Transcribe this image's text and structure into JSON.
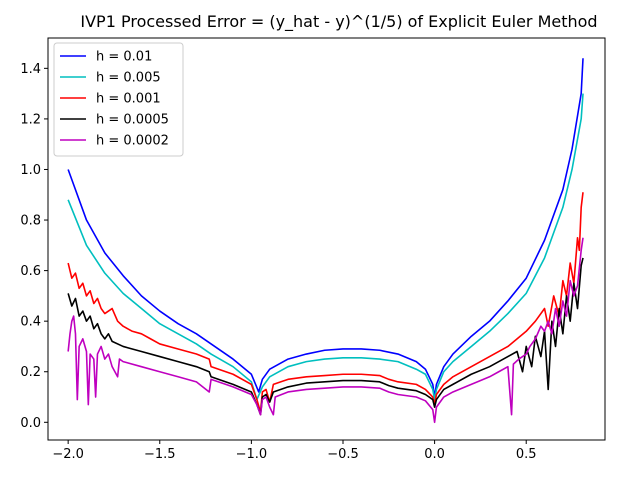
{
  "chart_data": {
    "type": "line",
    "title": "IVP1 Processed Error = (y_hat - y)^(1/5) of Explicit Euler Method",
    "xlabel": "",
    "ylabel": "",
    "xlim": [
      -2.11,
      0.93
    ],
    "ylim": [
      -0.07,
      1.52
    ],
    "xticks": [
      -2.0,
      -1.5,
      -1.0,
      -0.5,
      0.0,
      0.5
    ],
    "xtick_labels": [
      "−2.0",
      "−1.5",
      "−1.0",
      "−0.5",
      "0.0",
      "0.5"
    ],
    "yticks": [
      0.0,
      0.2,
      0.4,
      0.6,
      0.8,
      1.0,
      1.2,
      1.4
    ],
    "ytick_labels": [
      "0.0",
      "0.2",
      "0.4",
      "0.6",
      "0.8",
      "1.0",
      "1.2",
      "1.4"
    ],
    "grid": false,
    "legend_position": "top-left",
    "series": [
      {
        "name": "h = 0.01",
        "color": "#0000ff",
        "points": [
          [
            -2.0,
            1.0
          ],
          [
            -1.9,
            0.8
          ],
          [
            -1.8,
            0.67
          ],
          [
            -1.7,
            0.58
          ],
          [
            -1.6,
            0.5
          ],
          [
            -1.5,
            0.44
          ],
          [
            -1.4,
            0.39
          ],
          [
            -1.3,
            0.35
          ],
          [
            -1.2,
            0.3
          ],
          [
            -1.1,
            0.25
          ],
          [
            -1.0,
            0.19
          ],
          [
            -0.96,
            0.12
          ],
          [
            -0.94,
            0.17
          ],
          [
            -0.9,
            0.21
          ],
          [
            -0.8,
            0.25
          ],
          [
            -0.7,
            0.27
          ],
          [
            -0.6,
            0.285
          ],
          [
            -0.5,
            0.29
          ],
          [
            -0.4,
            0.29
          ],
          [
            -0.3,
            0.285
          ],
          [
            -0.2,
            0.27
          ],
          [
            -0.1,
            0.24
          ],
          [
            -0.05,
            0.21
          ],
          [
            -0.01,
            0.15
          ],
          [
            0.0,
            0.1
          ],
          [
            0.01,
            0.15
          ],
          [
            0.05,
            0.22
          ],
          [
            0.1,
            0.27
          ],
          [
            0.2,
            0.34
          ],
          [
            0.3,
            0.4
          ],
          [
            0.4,
            0.48
          ],
          [
            0.5,
            0.57
          ],
          [
            0.6,
            0.72
          ],
          [
            0.7,
            0.92
          ],
          [
            0.75,
            1.08
          ],
          [
            0.8,
            1.3
          ],
          [
            0.81,
            1.44
          ]
        ]
      },
      {
        "name": "h = 0.005",
        "color": "#00bfbf",
        "points": [
          [
            -2.0,
            0.88
          ],
          [
            -1.9,
            0.7
          ],
          [
            -1.8,
            0.59
          ],
          [
            -1.7,
            0.51
          ],
          [
            -1.6,
            0.45
          ],
          [
            -1.5,
            0.39
          ],
          [
            -1.4,
            0.35
          ],
          [
            -1.3,
            0.31
          ],
          [
            -1.22,
            0.27
          ],
          [
            -1.1,
            0.22
          ],
          [
            -1.0,
            0.16
          ],
          [
            -0.97,
            0.09
          ],
          [
            -0.94,
            0.14
          ],
          [
            -0.9,
            0.18
          ],
          [
            -0.8,
            0.22
          ],
          [
            -0.7,
            0.24
          ],
          [
            -0.6,
            0.25
          ],
          [
            -0.5,
            0.255
          ],
          [
            -0.4,
            0.255
          ],
          [
            -0.3,
            0.25
          ],
          [
            -0.2,
            0.24
          ],
          [
            -0.1,
            0.21
          ],
          [
            -0.05,
            0.19
          ],
          [
            -0.01,
            0.13
          ],
          [
            0.0,
            0.09
          ],
          [
            0.01,
            0.13
          ],
          [
            0.05,
            0.2
          ],
          [
            0.1,
            0.24
          ],
          [
            0.2,
            0.3
          ],
          [
            0.3,
            0.36
          ],
          [
            0.4,
            0.43
          ],
          [
            0.5,
            0.51
          ],
          [
            0.6,
            0.65
          ],
          [
            0.7,
            0.85
          ],
          [
            0.75,
            1.0
          ],
          [
            0.8,
            1.2
          ],
          [
            0.81,
            1.3
          ]
        ]
      },
      {
        "name": "h = 0.001",
        "color": "#ff0000",
        "points": [
          [
            -2.0,
            0.63
          ],
          [
            -1.98,
            0.57
          ],
          [
            -1.96,
            0.59
          ],
          [
            -1.94,
            0.53
          ],
          [
            -1.92,
            0.55
          ],
          [
            -1.9,
            0.5
          ],
          [
            -1.88,
            0.52
          ],
          [
            -1.86,
            0.47
          ],
          [
            -1.84,
            0.49
          ],
          [
            -1.82,
            0.45
          ],
          [
            -1.8,
            0.43
          ],
          [
            -1.76,
            0.45
          ],
          [
            -1.73,
            0.4
          ],
          [
            -1.7,
            0.38
          ],
          [
            -1.65,
            0.36
          ],
          [
            -1.6,
            0.35
          ],
          [
            -1.55,
            0.33
          ],
          [
            -1.5,
            0.31
          ],
          [
            -1.4,
            0.29
          ],
          [
            -1.3,
            0.27
          ],
          [
            -1.23,
            0.25
          ],
          [
            -1.22,
            0.22
          ],
          [
            -1.1,
            0.19
          ],
          [
            -1.0,
            0.15
          ],
          [
            -0.97,
            0.09
          ],
          [
            -0.95,
            0.04
          ],
          [
            -0.94,
            0.12
          ],
          [
            -0.92,
            0.13
          ],
          [
            -0.9,
            0.08
          ],
          [
            -0.88,
            0.15
          ],
          [
            -0.8,
            0.17
          ],
          [
            -0.7,
            0.18
          ],
          [
            -0.6,
            0.185
          ],
          [
            -0.5,
            0.19
          ],
          [
            -0.4,
            0.19
          ],
          [
            -0.3,
            0.185
          ],
          [
            -0.25,
            0.17
          ],
          [
            -0.2,
            0.16
          ],
          [
            -0.1,
            0.15
          ],
          [
            -0.05,
            0.13
          ],
          [
            -0.01,
            0.1
          ],
          [
            0.0,
            0.07
          ],
          [
            0.01,
            0.11
          ],
          [
            0.05,
            0.15
          ],
          [
            0.1,
            0.18
          ],
          [
            0.2,
            0.22
          ],
          [
            0.3,
            0.26
          ],
          [
            0.4,
            0.3
          ],
          [
            0.45,
            0.33
          ],
          [
            0.5,
            0.36
          ],
          [
            0.55,
            0.4
          ],
          [
            0.6,
            0.45
          ],
          [
            0.62,
            0.38
          ],
          [
            0.65,
            0.5
          ],
          [
            0.68,
            0.42
          ],
          [
            0.7,
            0.56
          ],
          [
            0.72,
            0.5
          ],
          [
            0.74,
            0.63
          ],
          [
            0.76,
            0.55
          ],
          [
            0.78,
            0.73
          ],
          [
            0.79,
            0.68
          ],
          [
            0.8,
            0.85
          ],
          [
            0.81,
            0.91
          ]
        ]
      },
      {
        "name": "h = 0.0005",
        "color": "#000000",
        "points": [
          [
            -2.0,
            0.51
          ],
          [
            -1.98,
            0.46
          ],
          [
            -1.96,
            0.49
          ],
          [
            -1.94,
            0.42
          ],
          [
            -1.92,
            0.44
          ],
          [
            -1.9,
            0.4
          ],
          [
            -1.88,
            0.42
          ],
          [
            -1.86,
            0.37
          ],
          [
            -1.84,
            0.39
          ],
          [
            -1.82,
            0.35
          ],
          [
            -1.8,
            0.33
          ],
          [
            -1.78,
            0.35
          ],
          [
            -1.76,
            0.32
          ],
          [
            -1.7,
            0.3
          ],
          [
            -1.6,
            0.28
          ],
          [
            -1.5,
            0.26
          ],
          [
            -1.4,
            0.24
          ],
          [
            -1.3,
            0.22
          ],
          [
            -1.23,
            0.2
          ],
          [
            -1.22,
            0.18
          ],
          [
            -1.1,
            0.15
          ],
          [
            -1.0,
            0.12
          ],
          [
            -0.97,
            0.07
          ],
          [
            -0.95,
            0.03
          ],
          [
            -0.94,
            0.1
          ],
          [
            -0.92,
            0.11
          ],
          [
            -0.9,
            0.08
          ],
          [
            -0.88,
            0.12
          ],
          [
            -0.8,
            0.14
          ],
          [
            -0.7,
            0.155
          ],
          [
            -0.6,
            0.16
          ],
          [
            -0.5,
            0.165
          ],
          [
            -0.4,
            0.165
          ],
          [
            -0.3,
            0.16
          ],
          [
            -0.25,
            0.145
          ],
          [
            -0.2,
            0.135
          ],
          [
            -0.1,
            0.125
          ],
          [
            -0.05,
            0.11
          ],
          [
            -0.01,
            0.09
          ],
          [
            0.0,
            0.06
          ],
          [
            0.01,
            0.09
          ],
          [
            0.05,
            0.13
          ],
          [
            0.1,
            0.15
          ],
          [
            0.2,
            0.19
          ],
          [
            0.3,
            0.22
          ],
          [
            0.4,
            0.26
          ],
          [
            0.45,
            0.28
          ],
          [
            0.48,
            0.2
          ],
          [
            0.5,
            0.3
          ],
          [
            0.53,
            0.22
          ],
          [
            0.55,
            0.34
          ],
          [
            0.58,
            0.26
          ],
          [
            0.6,
            0.36
          ],
          [
            0.62,
            0.13
          ],
          [
            0.64,
            0.4
          ],
          [
            0.66,
            0.3
          ],
          [
            0.68,
            0.45
          ],
          [
            0.7,
            0.35
          ],
          [
            0.72,
            0.5
          ],
          [
            0.74,
            0.4
          ],
          [
            0.76,
            0.55
          ],
          [
            0.78,
            0.45
          ],
          [
            0.8,
            0.62
          ],
          [
            0.81,
            0.65
          ]
        ]
      },
      {
        "name": "h = 0.0002",
        "color": "#bf00bf",
        "points": [
          [
            -2.0,
            0.28
          ],
          [
            -1.99,
            0.35
          ],
          [
            -1.98,
            0.4
          ],
          [
            -1.97,
            0.42
          ],
          [
            -1.96,
            0.35
          ],
          [
            -1.95,
            0.09
          ],
          [
            -1.94,
            0.3
          ],
          [
            -1.92,
            0.33
          ],
          [
            -1.9,
            0.28
          ],
          [
            -1.89,
            0.07
          ],
          [
            -1.88,
            0.27
          ],
          [
            -1.86,
            0.25
          ],
          [
            -1.85,
            0.1
          ],
          [
            -1.84,
            0.27
          ],
          [
            -1.82,
            0.3
          ],
          [
            -1.8,
            0.25
          ],
          [
            -1.78,
            0.27
          ],
          [
            -1.76,
            0.22
          ],
          [
            -1.73,
            0.18
          ],
          [
            -1.72,
            0.25
          ],
          [
            -1.7,
            0.24
          ],
          [
            -1.6,
            0.22
          ],
          [
            -1.5,
            0.2
          ],
          [
            -1.4,
            0.18
          ],
          [
            -1.3,
            0.16
          ],
          [
            -1.23,
            0.12
          ],
          [
            -1.22,
            0.17
          ],
          [
            -1.1,
            0.14
          ],
          [
            -1.0,
            0.11
          ],
          [
            -0.97,
            0.07
          ],
          [
            -0.95,
            0.03
          ],
          [
            -0.94,
            0.09
          ],
          [
            -0.92,
            0.1
          ],
          [
            -0.9,
            0.06
          ],
          [
            -0.88,
            0.03
          ],
          [
            -0.87,
            0.1
          ],
          [
            -0.8,
            0.12
          ],
          [
            -0.7,
            0.13
          ],
          [
            -0.6,
            0.135
          ],
          [
            -0.5,
            0.14
          ],
          [
            -0.4,
            0.14
          ],
          [
            -0.3,
            0.135
          ],
          [
            -0.25,
            0.12
          ],
          [
            -0.2,
            0.11
          ],
          [
            -0.1,
            0.1
          ],
          [
            -0.05,
            0.085
          ],
          [
            -0.01,
            0.05
          ],
          [
            0.0,
            0.0
          ],
          [
            0.01,
            0.06
          ],
          [
            0.05,
            0.1
          ],
          [
            0.1,
            0.12
          ],
          [
            0.2,
            0.15
          ],
          [
            0.3,
            0.18
          ],
          [
            0.35,
            0.2
          ],
          [
            0.4,
            0.22
          ],
          [
            0.42,
            0.03
          ],
          [
            0.43,
            0.23
          ],
          [
            0.46,
            0.25
          ],
          [
            0.5,
            0.27
          ],
          [
            0.52,
            0.3
          ],
          [
            0.55,
            0.33
          ],
          [
            0.58,
            0.38
          ],
          [
            0.6,
            0.36
          ],
          [
            0.62,
            0.4
          ],
          [
            0.64,
            0.35
          ],
          [
            0.66,
            0.45
          ],
          [
            0.68,
            0.38
          ],
          [
            0.7,
            0.48
          ],
          [
            0.72,
            0.42
          ],
          [
            0.74,
            0.56
          ],
          [
            0.76,
            0.5
          ],
          [
            0.78,
            0.54
          ],
          [
            0.8,
            0.68
          ],
          [
            0.81,
            0.73
          ]
        ]
      }
    ]
  }
}
